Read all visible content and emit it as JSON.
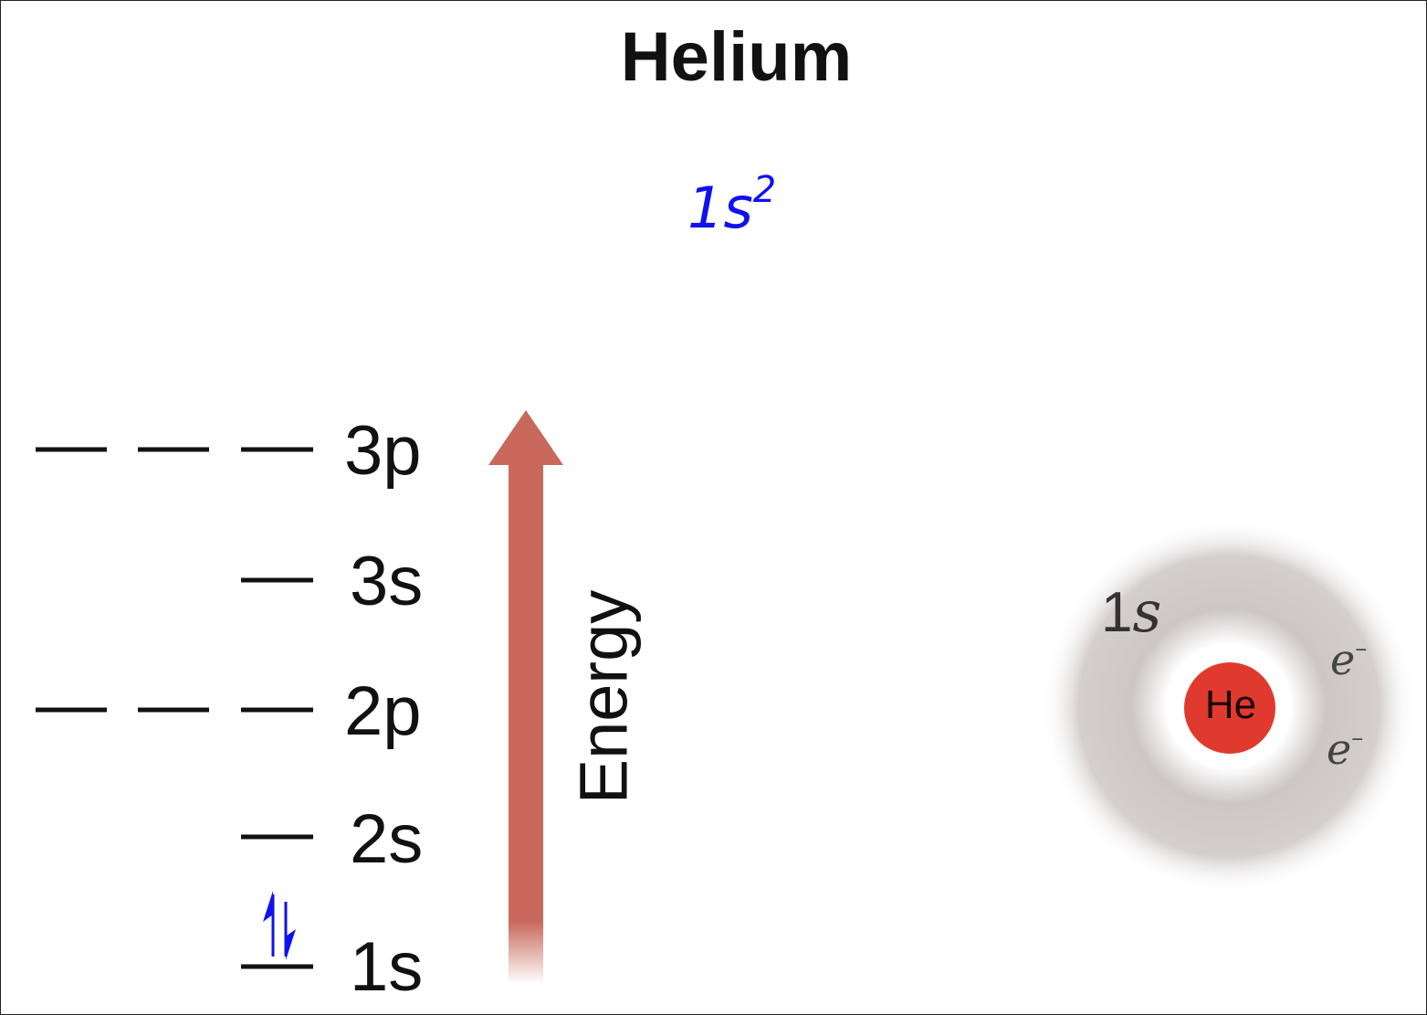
{
  "title": "Helium",
  "configuration": {
    "orbital": "1s",
    "superscript": "2"
  },
  "levels": [
    {
      "label": "3p",
      "orbitals": 3
    },
    {
      "label": "3s",
      "orbitals": 1
    },
    {
      "label": "2p",
      "orbitals": 3
    },
    {
      "label": "2s",
      "orbitals": 1
    },
    {
      "label": "1s",
      "orbitals": 1,
      "electrons": 2
    }
  ],
  "energy_axis_label": "Energy",
  "atom": {
    "nucleus": "He",
    "shell_label_number": "1",
    "shell_label_letter": "s",
    "electron_symbol": "e",
    "electron_charge": "–"
  },
  "colors": {
    "electron_arrows": "#1010f0",
    "configuration_text": "#1010f0",
    "energy_arrow": "#c8695c",
    "nucleus": "#e03a2e",
    "orbital_cloud": "#c8c0be"
  }
}
